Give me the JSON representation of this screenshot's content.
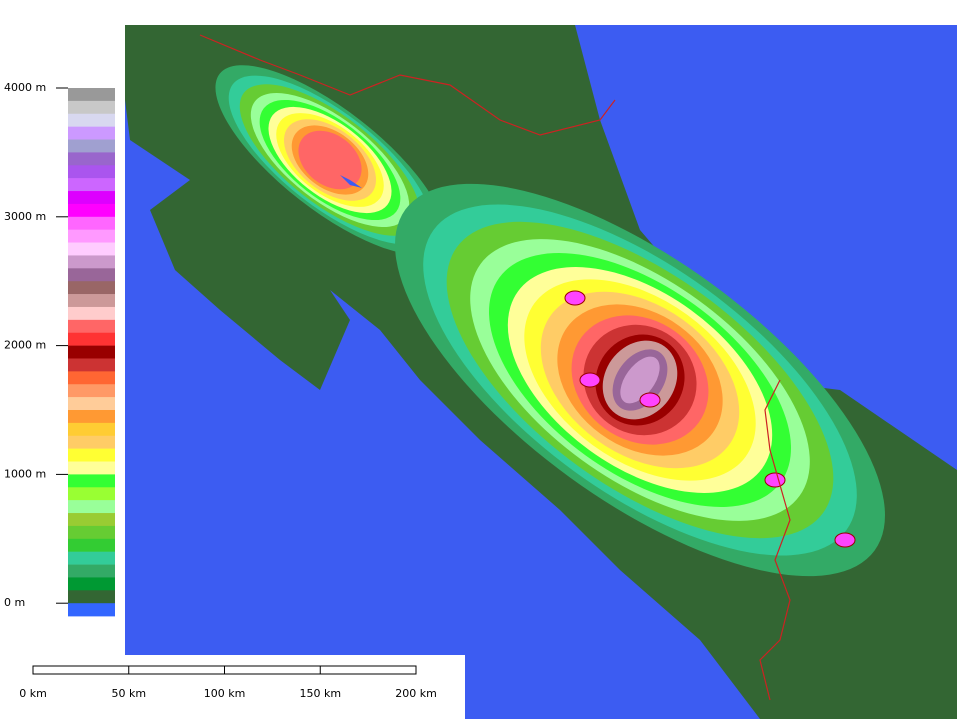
{
  "legend": {
    "labels": [
      "4000 m",
      "3000 m",
      "2000 m",
      "1000 m",
      "0 m"
    ]
  },
  "scale_bar": {
    "labels": [
      "0 km",
      "50 km",
      "100 km",
      "150 km",
      "200 km"
    ]
  }
}
